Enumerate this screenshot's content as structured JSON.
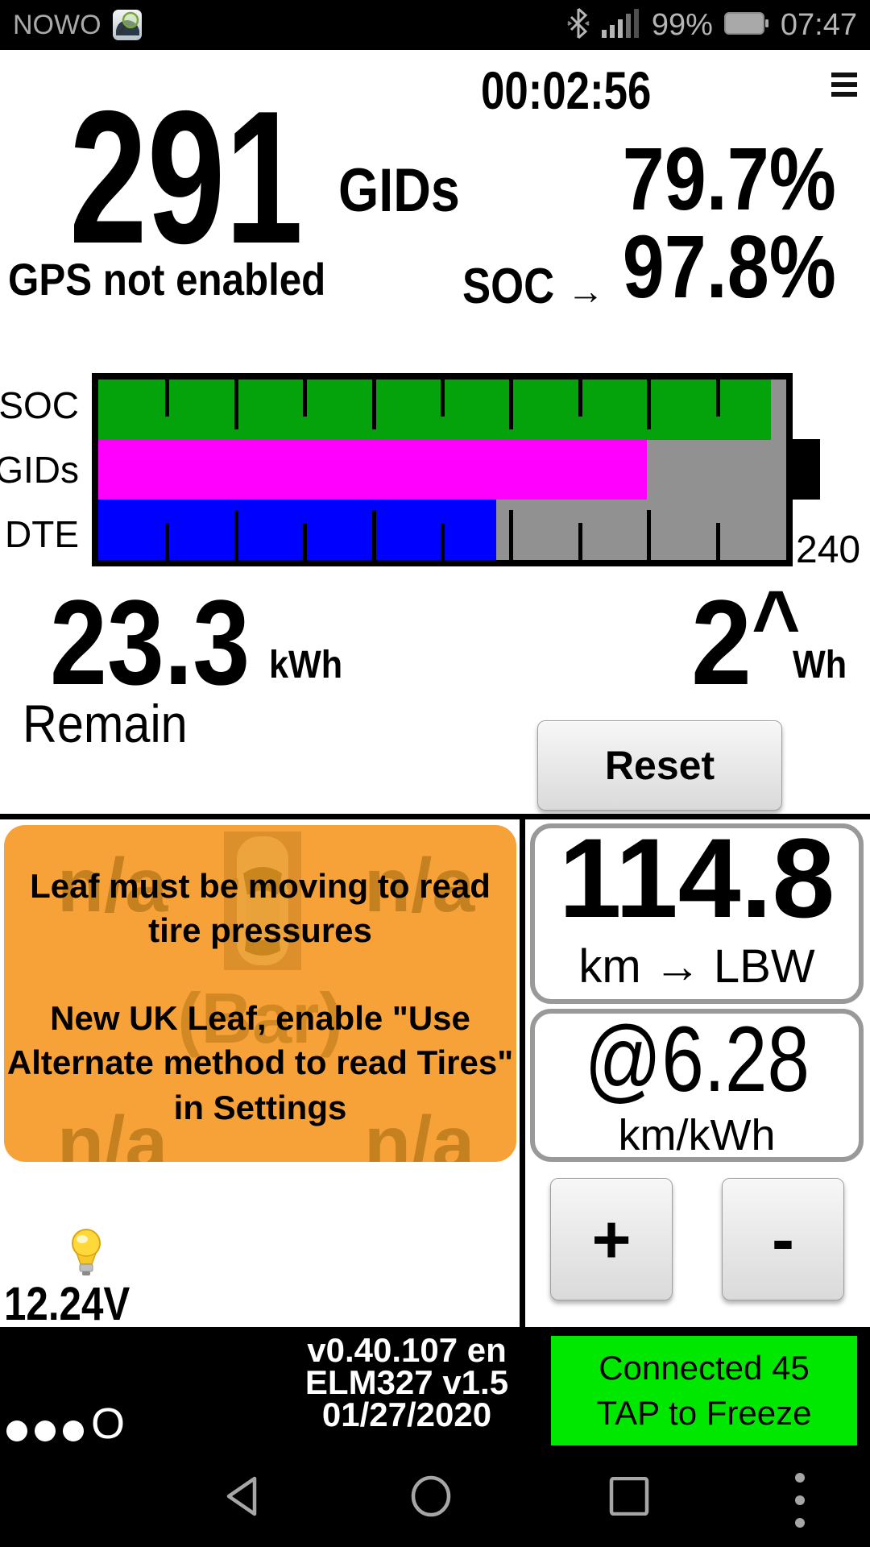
{
  "status_bar": {
    "carrier": "NOWO",
    "battery_percent": "99%",
    "time": "07:47"
  },
  "header": {
    "timer": "00:02:56",
    "gids_value": "291",
    "gids_label": "GIDs",
    "battery_percent": "79.7%",
    "gps_status": "GPS not enabled",
    "soc_label": "SOC",
    "soc_arrow": "→",
    "soc_value": "97.8%"
  },
  "battery_chart": {
    "rows": [
      {
        "label": "SOC",
        "percent": 97.8,
        "color": "#04a30c"
      },
      {
        "label": "GIDs",
        "percent": 79.7,
        "color": "#ff00ff"
      },
      {
        "label": "DTE",
        "percent": 57.8,
        "color": "#0000ff"
      }
    ],
    "empty_color": "#919191",
    "scale_label": "240"
  },
  "energy": {
    "remain_value": "23.3",
    "remain_unit": "kWh",
    "remain_label": "Remain",
    "rate_value": "2",
    "rate_caret": "^",
    "rate_unit": "Wh",
    "reset_label": "Reset"
  },
  "tires": {
    "front_left": "n/a",
    "front_right": "n/a",
    "rear_left": "n/a",
    "rear_right": "n/a",
    "unit_label": "(Bar)",
    "message1": "Leaf must be moving to read\ntire pressures",
    "message2": "New UK Leaf, enable \"Use\nAlternate method to read Tires\"\nin Settings"
  },
  "trip": {
    "range_value": "114.8",
    "range_unit": "km → LBW",
    "efficiency_value": "@6.28",
    "efficiency_unit": "km/kWh",
    "plus_label": "+",
    "minus_label": "-"
  },
  "aux": {
    "voltage": "12.24V"
  },
  "footer": {
    "page_indicator_letter": "O",
    "version_line1": "v0.40.107 en",
    "version_line2": "ELM327 v1.5",
    "version_line3": "01/27/2020",
    "connection": "Connected 45\nTAP to Freeze"
  },
  "colors": {
    "soc_bar": "#04a30c",
    "gids_bar": "#ff00ff",
    "dte_bar": "#0000ff",
    "bar_empty": "#919191",
    "tire_panel": "#f6a238",
    "tire_na_text": "#c5811f",
    "connect_box": "#00e800"
  }
}
